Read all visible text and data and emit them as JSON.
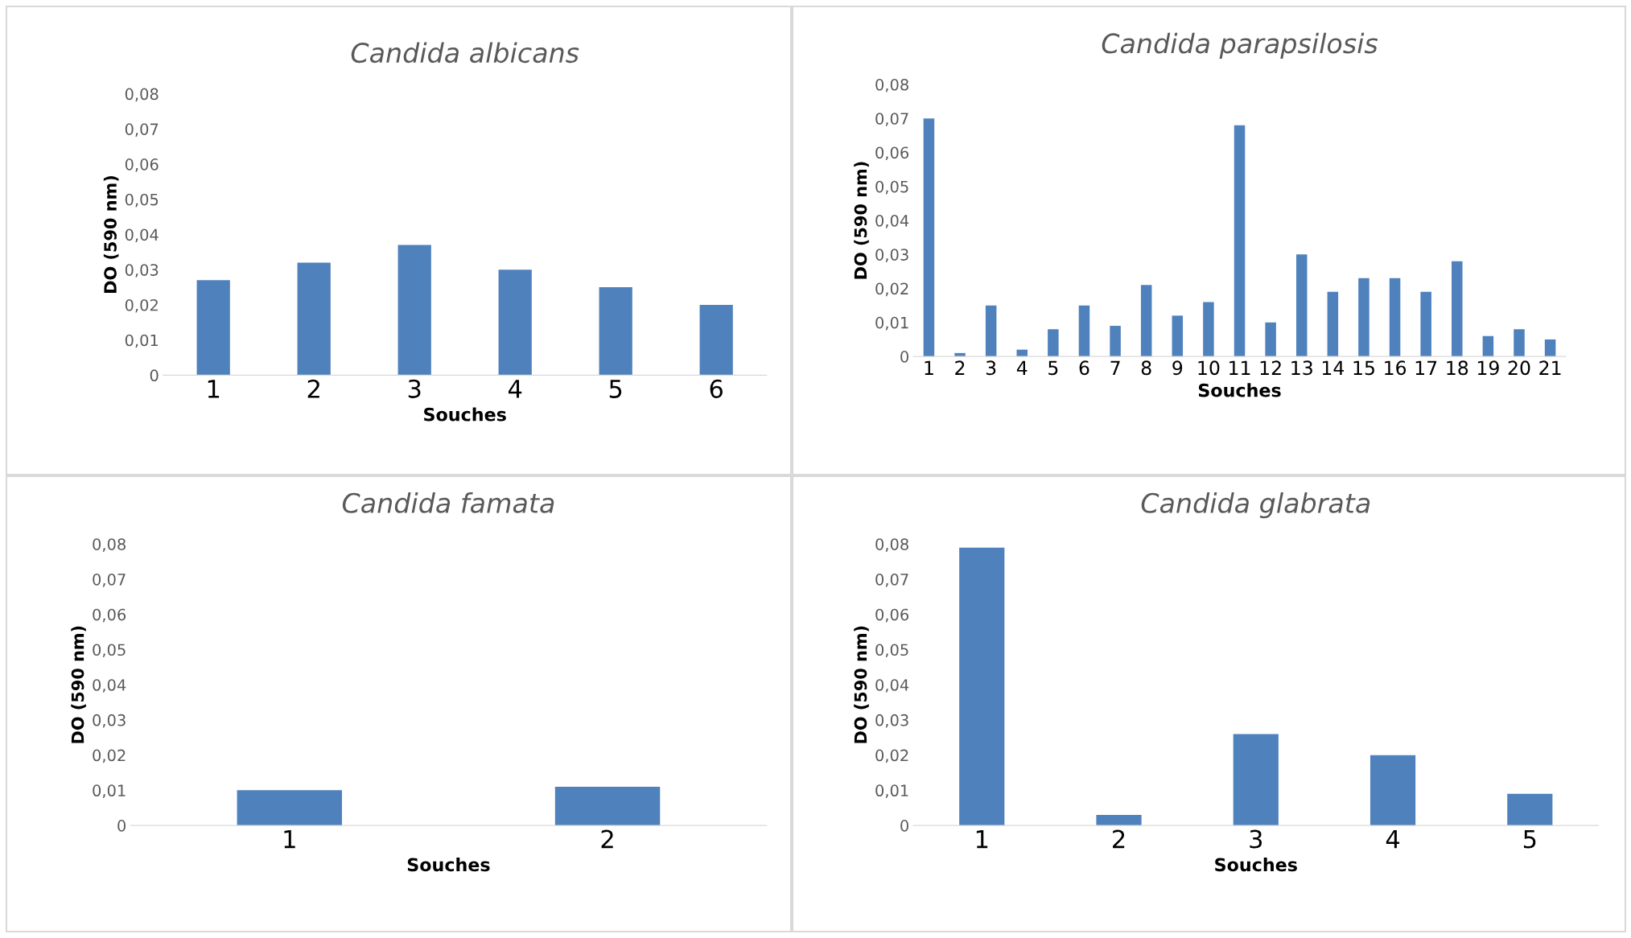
{
  "chart_data": [
    {
      "type": "bar",
      "title": "Candida albicans",
      "xlabel": "Souches",
      "ylabel": "DO (590 nm)",
      "categories": [
        "1",
        "2",
        "3",
        "4",
        "5",
        "6"
      ],
      "values": [
        0.027,
        0.032,
        0.037,
        0.03,
        0.025,
        0.02
      ],
      "color": "#4f81bd",
      "ylim": [
        0,
        0.08
      ],
      "yticks": [
        0,
        {
          "value": 0.01,
          "label": "0,01"
        },
        {
          "value": 0.02,
          "label": "0,02"
        },
        {
          "value": 0.03,
          "label": "0,03"
        },
        {
          "value": 0.04,
          "label": "0,04"
        },
        {
          "value": 0.05,
          "label": "0,05"
        },
        {
          "value": 0.06,
          "label": "0,06"
        },
        {
          "value": 0.07,
          "label": "0,07"
        },
        {
          "value": 0.08,
          "label": "0,08"
        }
      ],
      "grid": false
    },
    {
      "type": "bar",
      "title": "Candida parapsilosis",
      "xlabel": "Souches",
      "ylabel": "DO (590 nm)",
      "categories": [
        "1",
        "2",
        "3",
        "4",
        "5",
        "6",
        "7",
        "8",
        "9",
        "10",
        "11",
        "12",
        "13",
        "14",
        "15",
        "16",
        "17",
        "18",
        "19",
        "20",
        "21"
      ],
      "values": [
        0.07,
        0.001,
        0.015,
        0.002,
        0.008,
        0.015,
        0.009,
        0.021,
        0.012,
        0.016,
        0.068,
        0.01,
        0.03,
        0.019,
        0.023,
        0.023,
        0.019,
        0.028,
        0.006,
        0.008,
        0.005
      ],
      "color": "#4f81bd",
      "ylim": [
        0,
        0.08
      ],
      "yticks": [
        0,
        {
          "value": 0.01,
          "label": "0,01"
        },
        {
          "value": 0.02,
          "label": "0,02"
        },
        {
          "value": 0.03,
          "label": "0,03"
        },
        {
          "value": 0.04,
          "label": "0,04"
        },
        {
          "value": 0.05,
          "label": "0,05"
        },
        {
          "value": 0.06,
          "label": "0,06"
        },
        {
          "value": 0.07,
          "label": "0,07"
        },
        {
          "value": 0.08,
          "label": "0,08"
        }
      ],
      "grid": false
    },
    {
      "type": "bar",
      "title": "Candida famata",
      "xlabel": "Souches",
      "ylabel": "DO (590 nm)",
      "categories": [
        "1",
        "2"
      ],
      "values": [
        0.01,
        0.011
      ],
      "color": "#4f81bd",
      "ylim": [
        0,
        0.08
      ],
      "yticks": [
        0,
        {
          "value": 0.01,
          "label": "0,01"
        },
        {
          "value": 0.02,
          "label": "0,02"
        },
        {
          "value": 0.03,
          "label": "0,03"
        },
        {
          "value": 0.04,
          "label": "0,04"
        },
        {
          "value": 0.05,
          "label": "0,05"
        },
        {
          "value": 0.06,
          "label": "0,06"
        },
        {
          "value": 0.07,
          "label": "0,07"
        },
        {
          "value": 0.08,
          "label": "0,08"
        }
      ],
      "grid": false
    },
    {
      "type": "bar",
      "title": "Candida glabrata",
      "xlabel": "Souches",
      "ylabel": "DO (590 nm)",
      "categories": [
        "1",
        "2",
        "3",
        "4",
        "5"
      ],
      "values": [
        0.079,
        0.003,
        0.026,
        0.02,
        0.009
      ],
      "color": "#4f81bd",
      "ylim": [
        0,
        0.08
      ],
      "yticks": [
        0,
        {
          "value": 0.01,
          "label": "0,01"
        },
        {
          "value": 0.02,
          "label": "0,02"
        },
        {
          "value": 0.03,
          "label": "0,03"
        },
        {
          "value": 0.04,
          "label": "0,04"
        },
        {
          "value": 0.05,
          "label": "0,05"
        },
        {
          "value": 0.06,
          "label": "0,06"
        },
        {
          "value": 0.07,
          "label": "0,07"
        },
        {
          "value": 0.08,
          "label": "0,08"
        }
      ],
      "grid": false
    }
  ]
}
